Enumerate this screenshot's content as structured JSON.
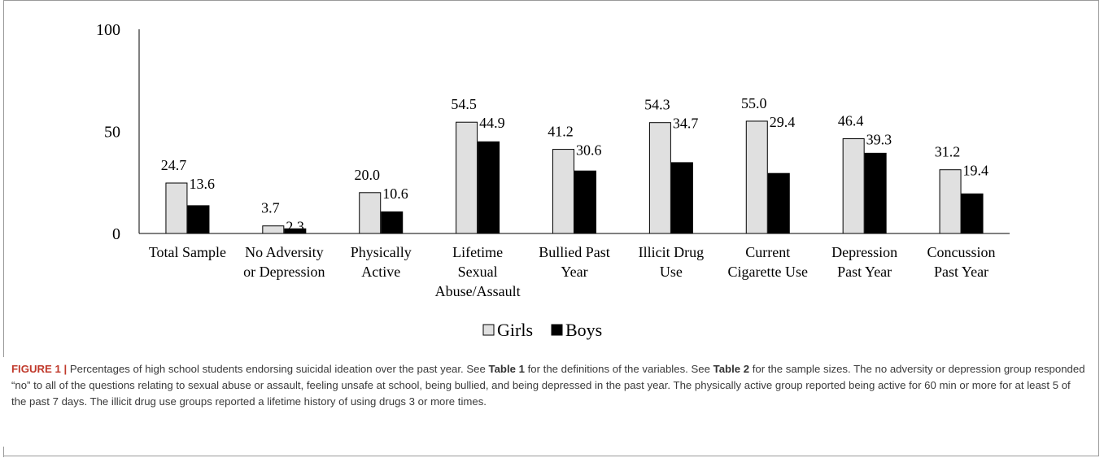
{
  "chart_data": {
    "type": "bar",
    "categories": [
      [
        "Total Sample"
      ],
      [
        "No Adversity",
        "or Depression"
      ],
      [
        "Physically",
        "Active"
      ],
      [
        "Lifetime",
        "Sexual",
        "Abuse/Assault"
      ],
      [
        "Bullied Past",
        "Year"
      ],
      [
        "Illicit Drug",
        "Use"
      ],
      [
        "Current",
        "Cigarette Use"
      ],
      [
        "Depression",
        "Past Year"
      ],
      [
        "Concussion",
        "Past Year"
      ]
    ],
    "series": [
      {
        "name": "Girls",
        "color": "#e0e0e0",
        "values": [
          24.7,
          3.7,
          20.0,
          54.5,
          41.2,
          54.3,
          55.0,
          46.4,
          31.2
        ],
        "labels": [
          "24.7",
          "3.7",
          "20.0",
          "54.5",
          "41.2",
          "54.3",
          "55.0",
          "46.4",
          "31.2"
        ]
      },
      {
        "name": "Boys",
        "color": "#000000",
        "values": [
          13.6,
          2.3,
          10.6,
          44.9,
          30.6,
          34.7,
          29.4,
          39.3,
          19.4
        ],
        "labels": [
          "13.6",
          "2.3",
          "10.6",
          "44.9",
          "30.6",
          "34.7",
          "29.4",
          "39.3",
          "19.4"
        ]
      }
    ],
    "ylim": [
      0,
      100
    ],
    "yticks": [
      "0",
      "50",
      "100"
    ],
    "legend_position": "bottom",
    "grid": false
  },
  "caption": {
    "figure_label": "FIGURE 1 |",
    "text_1": " Percentages of high school students endorsing suicidal ideation over the past year. See ",
    "table1": "Table 1",
    "text_2": " for the definitions of the variables. See ",
    "table2": "Table 2",
    "text_3": " for the sample sizes. The no adversity or depression group responded “no” to all of the questions relating to sexual abuse or assault, feeling unsafe at school, being bullied, and being depressed in the past year. The physically active group reported being active for 60 min or more for at least 5 of the past 7 days. The illicit drug use groups reported a lifetime history of using drugs 3 or more times."
  }
}
